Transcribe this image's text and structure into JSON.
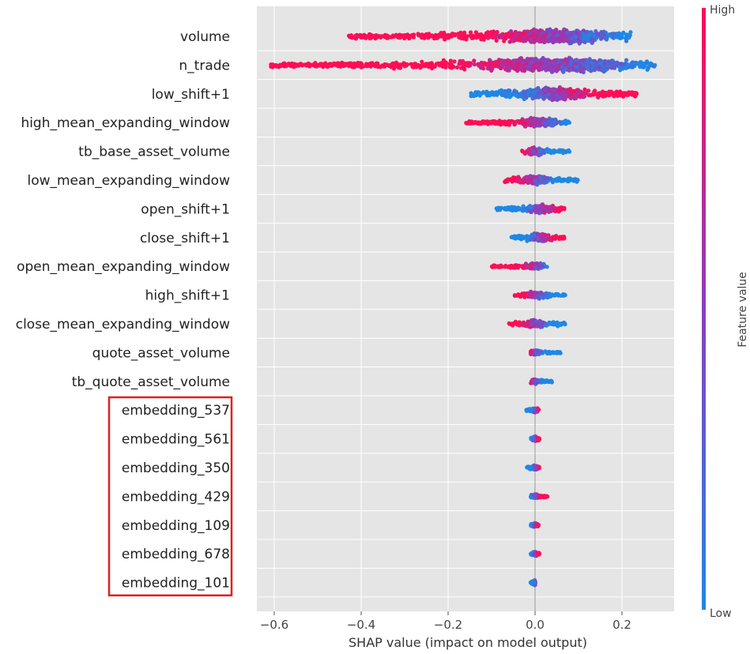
{
  "chart_data": {
    "type": "beeswarm",
    "title": "",
    "xlabel": "SHAP value (impact on model output)",
    "xlim": [
      -0.64,
      0.32
    ],
    "x_ticks": [
      -0.6,
      -0.4,
      -0.2,
      0.0,
      0.2
    ],
    "x_tick_labels": [
      "−0.6",
      "−0.4",
      "−0.2",
      "0.0",
      "0.2"
    ],
    "colorbar": {
      "title": "Feature value",
      "high_label": "High",
      "low_label": "Low",
      "high_color": "#ff0d57",
      "low_color": "#1e88e5"
    },
    "features": [
      {
        "name": "volume",
        "min": -0.43,
        "max": 0.22,
        "center": 0.05,
        "spread": 18,
        "high_side": "neg"
      },
      {
        "name": "n_trade",
        "min": -0.61,
        "max": 0.28,
        "center": 0.04,
        "spread": 18,
        "high_side": "neg"
      },
      {
        "name": "low_shift+1",
        "min": -0.15,
        "max": 0.24,
        "center": 0.04,
        "spread": 16,
        "high_side": "pos"
      },
      {
        "name": "high_mean_expanding_window",
        "min": -0.16,
        "max": 0.08,
        "center": 0.01,
        "spread": 12,
        "high_side": "neg"
      },
      {
        "name": "tb_base_asset_volume",
        "min": -0.03,
        "max": 0.08,
        "center": 0.0,
        "spread": 10,
        "high_side": "neg"
      },
      {
        "name": "low_mean_expanding_window",
        "min": -0.07,
        "max": 0.1,
        "center": 0.0,
        "spread": 12,
        "high_side": "neg"
      },
      {
        "name": "open_shift+1",
        "min": -0.09,
        "max": 0.07,
        "center": 0.01,
        "spread": 11,
        "high_side": "pos"
      },
      {
        "name": "close_shift+1",
        "min": -0.06,
        "max": 0.07,
        "center": 0.01,
        "spread": 11,
        "high_side": "pos"
      },
      {
        "name": "open_mean_expanding_window",
        "min": -0.1,
        "max": 0.03,
        "center": 0.0,
        "spread": 9,
        "high_side": "neg"
      },
      {
        "name": "high_shift+1",
        "min": -0.05,
        "max": 0.07,
        "center": 0.0,
        "spread": 9,
        "high_side": "neg"
      },
      {
        "name": "close_mean_expanding_window",
        "min": -0.06,
        "max": 0.07,
        "center": 0.0,
        "spread": 10,
        "high_side": "neg"
      },
      {
        "name": "quote_asset_volume",
        "min": -0.01,
        "max": 0.06,
        "center": 0.0,
        "spread": 7,
        "high_side": "neg"
      },
      {
        "name": "tb_quote_asset_volume",
        "min": -0.01,
        "max": 0.04,
        "center": 0.0,
        "spread": 7,
        "high_side": "neg"
      },
      {
        "name": "embedding_537",
        "min": -0.02,
        "max": 0.01,
        "center": 0.0,
        "spread": 6,
        "high_side": "pos"
      },
      {
        "name": "embedding_561",
        "min": -0.01,
        "max": 0.01,
        "center": 0.0,
        "spread": 6,
        "high_side": "pos"
      },
      {
        "name": "embedding_350",
        "min": -0.02,
        "max": 0.01,
        "center": 0.0,
        "spread": 6,
        "high_side": "pos"
      },
      {
        "name": "embedding_429",
        "min": -0.01,
        "max": 0.03,
        "center": 0.0,
        "spread": 6,
        "high_side": "pos"
      },
      {
        "name": "embedding_109",
        "min": -0.01,
        "max": 0.01,
        "center": 0.0,
        "spread": 6,
        "high_side": "pos"
      },
      {
        "name": "embedding_678",
        "min": -0.01,
        "max": 0.01,
        "center": 0.0,
        "spread": 6,
        "high_side": "pos"
      },
      {
        "name": "embedding_101",
        "min": -0.01,
        "max": 0.0,
        "center": 0.0,
        "spread": 6,
        "high_side": "pos"
      }
    ],
    "highlight": {
      "from_feature": "embedding_537",
      "to_feature": "embedding_101",
      "color": "#e02020"
    }
  }
}
